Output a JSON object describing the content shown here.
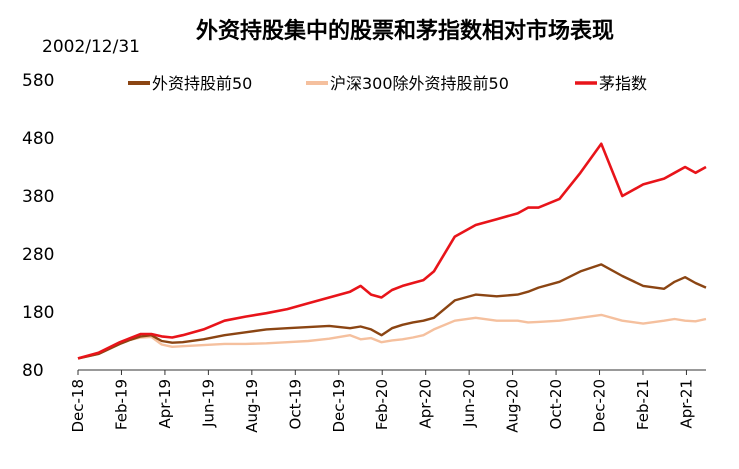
{
  "chart_data": {
    "type": "line",
    "title": "外资持股集中的股票和茅指数相对市场表现",
    "base_date": "2002/12/31",
    "xlabel": "",
    "ylabel": "",
    "ylim": [
      80,
      580
    ],
    "yticks": [
      80,
      180,
      280,
      380,
      480,
      580
    ],
    "x_ticks": [
      "Dec-18",
      "Feb-19",
      "Apr-19",
      "Jun-19",
      "Aug-19",
      "Oct-19",
      "Dec-19",
      "Feb-20",
      "Apr-20",
      "Jun-20",
      "Aug-20",
      "Oct-20",
      "Dec-20",
      "Feb-21",
      "Apr-21"
    ],
    "x_range": [
      0,
      30
    ],
    "legend_position": "top",
    "grid": false,
    "series": [
      {
        "name": "外资持股前50",
        "color": "#8B4513",
        "x": [
          0,
          1,
          2,
          2.5,
          3,
          3.5,
          4,
          4.5,
          5,
          6,
          7,
          8,
          9,
          10,
          11,
          12,
          13,
          13.5,
          14,
          14.5,
          15,
          15.5,
          16,
          16.5,
          17,
          18,
          19,
          20,
          21,
          21.5,
          22,
          23,
          24,
          25,
          26,
          27,
          28,
          28.5,
          29,
          29.5,
          30
        ],
        "y": [
          100,
          108,
          125,
          132,
          138,
          140,
          130,
          127,
          128,
          133,
          140,
          145,
          150,
          152,
          154,
          156,
          152,
          155,
          150,
          140,
          152,
          158,
          162,
          165,
          170,
          200,
          210,
          207,
          210,
          215,
          222,
          232,
          250,
          262,
          242,
          225,
          220,
          232,
          240,
          230,
          222
        ]
      },
      {
        "name": "沪深300除外资持股前50",
        "color": "#F5C09E",
        "x": [
          0,
          1,
          2,
          2.5,
          3,
          3.5,
          4,
          4.5,
          5,
          6,
          7,
          8,
          9,
          10,
          11,
          12,
          13,
          13.5,
          14,
          14.5,
          15,
          15.5,
          16,
          16.5,
          17,
          18,
          19,
          20,
          21,
          21.5,
          22,
          23,
          24,
          25,
          26,
          27,
          28,
          28.5,
          29,
          29.5,
          30
        ],
        "y": [
          100,
          108,
          125,
          132,
          136,
          137,
          124,
          120,
          121,
          123,
          125,
          125,
          126,
          128,
          130,
          134,
          140,
          133,
          135,
          128,
          131,
          133,
          136,
          140,
          150,
          165,
          170,
          165,
          165,
          162,
          163,
          165,
          170,
          175,
          165,
          160,
          165,
          168,
          165,
          164,
          168
        ]
      },
      {
        "name": "茅指数",
        "color": "#E8141A",
        "x": [
          0,
          1,
          2,
          2.5,
          3,
          3.5,
          4,
          4.5,
          5,
          6,
          7,
          8,
          9,
          10,
          11,
          12,
          13,
          13.5,
          14,
          14.5,
          15,
          15.5,
          16,
          16.5,
          17,
          18,
          19,
          20,
          21,
          21.5,
          22,
          23,
          24,
          25,
          26,
          27,
          28,
          28.5,
          29,
          29.5,
          30
        ],
        "y": [
          100,
          110,
          128,
          135,
          142,
          142,
          138,
          136,
          140,
          150,
          165,
          172,
          178,
          185,
          195,
          205,
          215,
          225,
          210,
          205,
          218,
          225,
          230,
          235,
          250,
          310,
          330,
          340,
          350,
          360,
          360,
          375,
          420,
          470,
          380,
          400,
          410,
          420,
          430,
          420,
          430
        ]
      }
    ]
  }
}
